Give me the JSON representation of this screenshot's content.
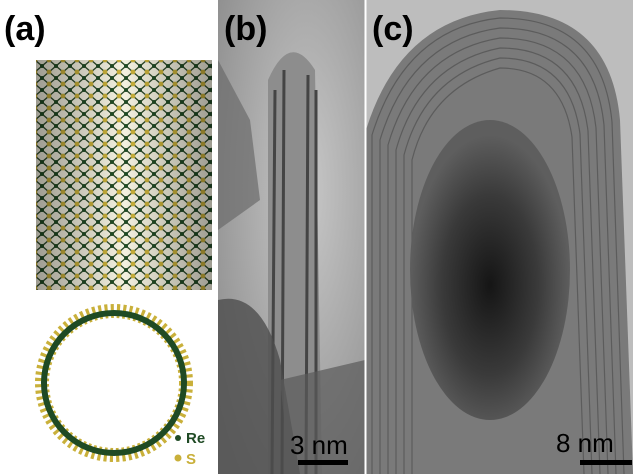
{
  "panels": [
    {
      "label": "(a)",
      "legend": [
        "Re",
        "S"
      ]
    },
    {
      "label": "(b)",
      "scale_bar": "3 nm"
    },
    {
      "label": "(c)",
      "scale_bar": "8 nm"
    }
  ]
}
